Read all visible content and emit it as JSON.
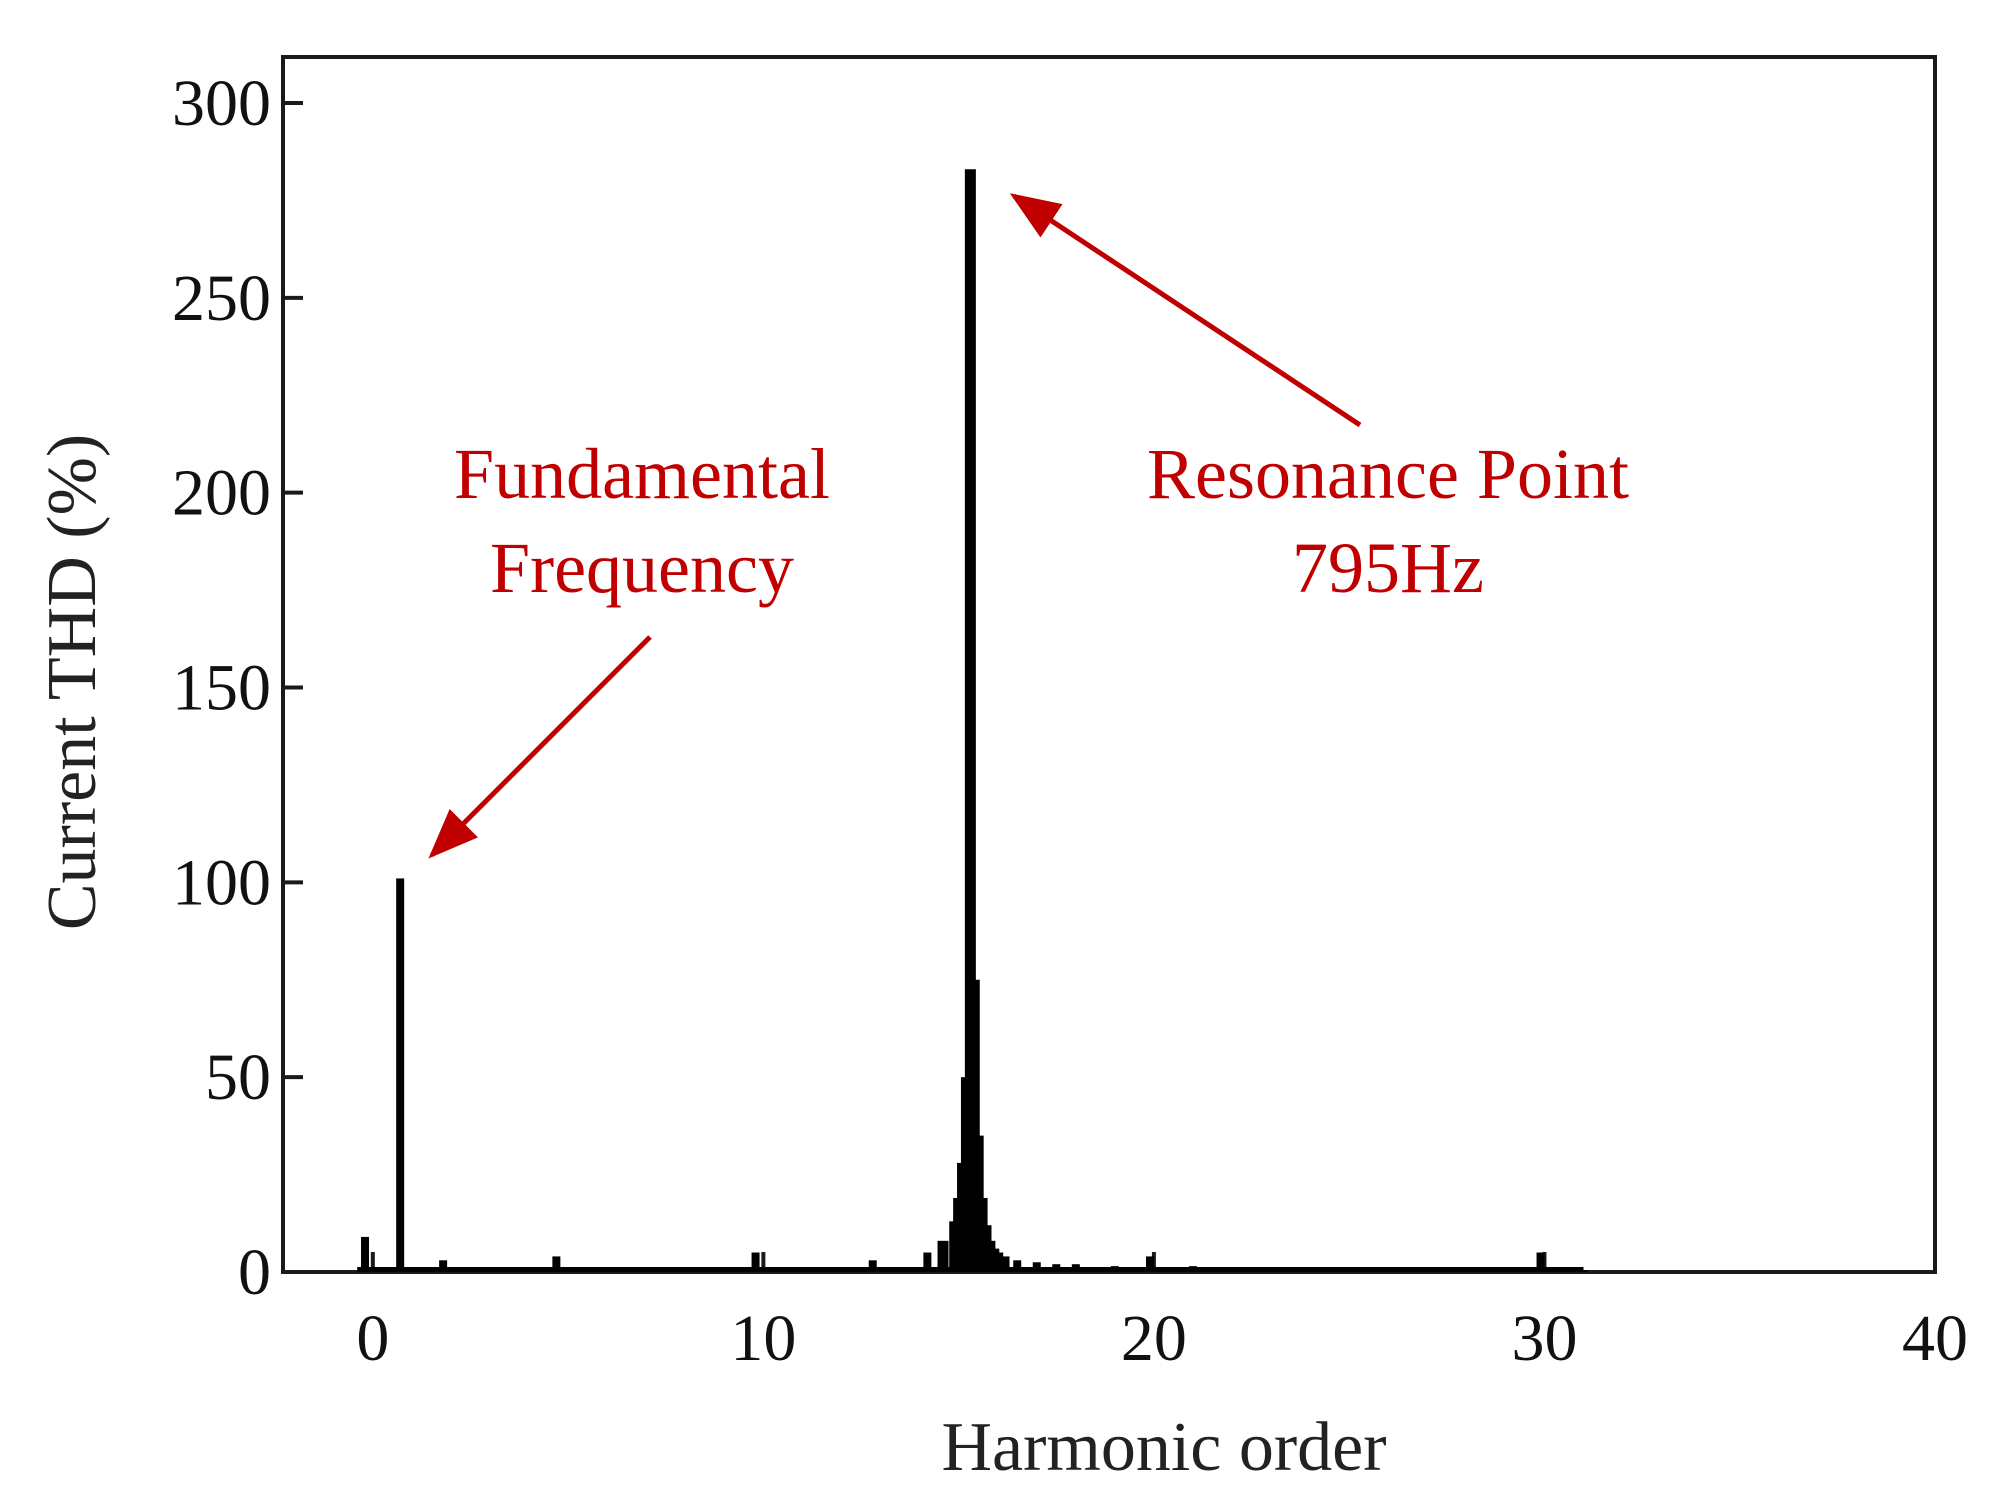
{
  "chart_data": {
    "type": "bar",
    "xlabel": "Harmonic order",
    "ylabel": "Current THD (%)",
    "xlim": [
      -2.3,
      40
    ],
    "ylim": [
      0,
      300
    ],
    "xticks": [
      0,
      10,
      20,
      30,
      40
    ],
    "yticks": [
      0,
      50,
      100,
      150,
      200,
      250,
      300
    ],
    "grid": false,
    "series": [
      {
        "x": [
          -0.2,
          0.7,
          1.8,
          4.7,
          9.8,
          12.8,
          14.2,
          14.6,
          14.9,
          15.0,
          15.1,
          15.2,
          15.3,
          15.4,
          15.5,
          15.6,
          15.7,
          15.8,
          15.9,
          16.0,
          16.2,
          16.5,
          17.0,
          17.5,
          18.0,
          19.0,
          19.9,
          21.0,
          22.0,
          24.0,
          26.0,
          28.0,
          29.9,
          31.0
        ],
        "values": [
          9,
          101,
          3,
          4,
          5,
          3,
          5,
          8,
          13,
          19,
          28,
          50,
          283,
          75,
          35,
          19,
          12,
          8,
          6,
          5,
          4,
          3,
          2.5,
          2,
          2,
          1.5,
          4,
          1.5,
          1,
          0.8,
          0.5,
          0.4,
          5,
          0.3
        ]
      }
    ],
    "annotations": [
      {
        "text": [
          "Fundamental",
          "Frequency"
        ],
        "target": {
          "x": 0.7,
          "y": 101
        }
      },
      {
        "text": [
          "Resonance Point",
          "795Hz"
        ],
        "target": {
          "x": 15.3,
          "y": 283
        }
      }
    ],
    "colors": {
      "bars": "#000000",
      "annotation": "#c00000",
      "axis": "#1a1a1a"
    }
  }
}
